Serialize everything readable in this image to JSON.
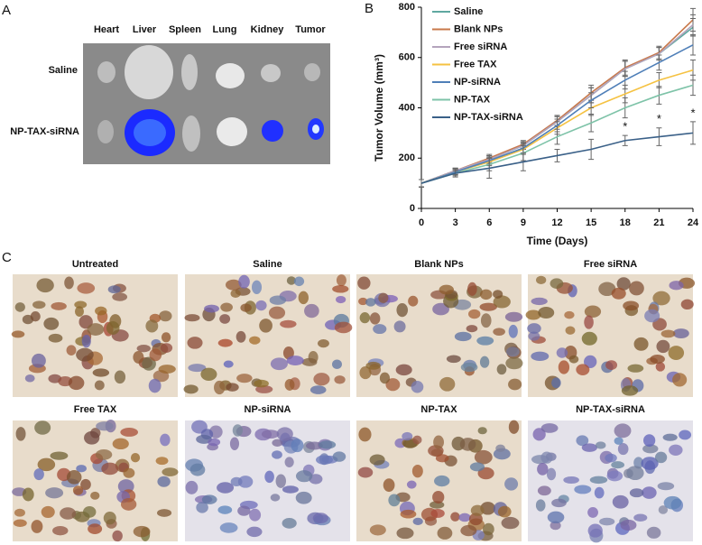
{
  "panel_a": {
    "label": "A",
    "columns": [
      "Heart",
      "Liver",
      "Spleen",
      "Lung",
      "Kidney",
      "Tumor"
    ],
    "rows": [
      "Saline",
      "NP-TAX-siRNA"
    ]
  },
  "panel_b": {
    "label": "B"
  },
  "panel_c": {
    "label": "C",
    "titles": [
      "Untreated",
      "Saline",
      "Blank NPs",
      "Free siRNA",
      "Free TAX",
      "NP-siRNA",
      "NP-TAX",
      "NP-TAX-siRNA"
    ]
  },
  "chart_data": {
    "type": "line",
    "x_label": "Time (Days)",
    "y_label": "Tumor Volume (mm³)",
    "x": [
      0,
      3,
      6,
      9,
      12,
      15,
      18,
      21,
      24
    ],
    "xlim": [
      0,
      24
    ],
    "xticks": [
      0,
      3,
      6,
      9,
      12,
      15,
      18,
      21,
      24
    ],
    "ylim": [
      0,
      800
    ],
    "yticks": [
      0,
      200,
      400,
      600,
      800
    ],
    "legend": "upper left",
    "series": [
      {
        "name": "Saline",
        "color": "#5fa8a0",
        "values": [
          100,
          150,
          195,
          250,
          345,
          450,
          555,
          615,
          720
        ],
        "errors": [
          15,
          10,
          15,
          15,
          20,
          30,
          30,
          25,
          35
        ]
      },
      {
        "name": "Blank NPs",
        "color": "#c8784a",
        "values": [
          100,
          150,
          200,
          255,
          350,
          460,
          560,
          620,
          750
        ],
        "errors": [
          15,
          10,
          15,
          15,
          20,
          30,
          30,
          25,
          45
        ]
      },
      {
        "name": "Free siRNA",
        "color": "#b4a4bc",
        "values": [
          100,
          150,
          195,
          250,
          345,
          450,
          555,
          615,
          730
        ],
        "errors": [
          15,
          10,
          15,
          15,
          20,
          30,
          30,
          25,
          40
        ]
      },
      {
        "name": "Free TAX",
        "color": "#f5c242",
        "values": [
          100,
          145,
          185,
          235,
          320,
          400,
          455,
          510,
          550
        ],
        "errors": [
          15,
          10,
          15,
          20,
          25,
          30,
          35,
          30,
          40
        ]
      },
      {
        "name": "NP-siRNA",
        "color": "#4f7fb8",
        "values": [
          100,
          145,
          190,
          240,
          330,
          430,
          510,
          580,
          650
        ],
        "errors": [
          15,
          10,
          15,
          20,
          25,
          30,
          35,
          30,
          40
        ]
      },
      {
        "name": "NP-TAX",
        "color": "#7ec3a8",
        "values": [
          100,
          140,
          175,
          220,
          285,
          340,
          400,
          450,
          490
        ],
        "errors": [
          15,
          10,
          25,
          30,
          30,
          35,
          40,
          35,
          40
        ]
      },
      {
        "name": "NP-TAX-siRNA",
        "color": "#3a6088",
        "values": [
          100,
          140,
          160,
          185,
          210,
          235,
          270,
          285,
          300
        ],
        "errors": [
          15,
          15,
          40,
          35,
          25,
          40,
          20,
          35,
          45
        ]
      }
    ],
    "annotations": [
      {
        "text": "*",
        "x": 18
      },
      {
        "text": "*",
        "x": 21
      },
      {
        "text": "*",
        "x": 24
      }
    ]
  }
}
